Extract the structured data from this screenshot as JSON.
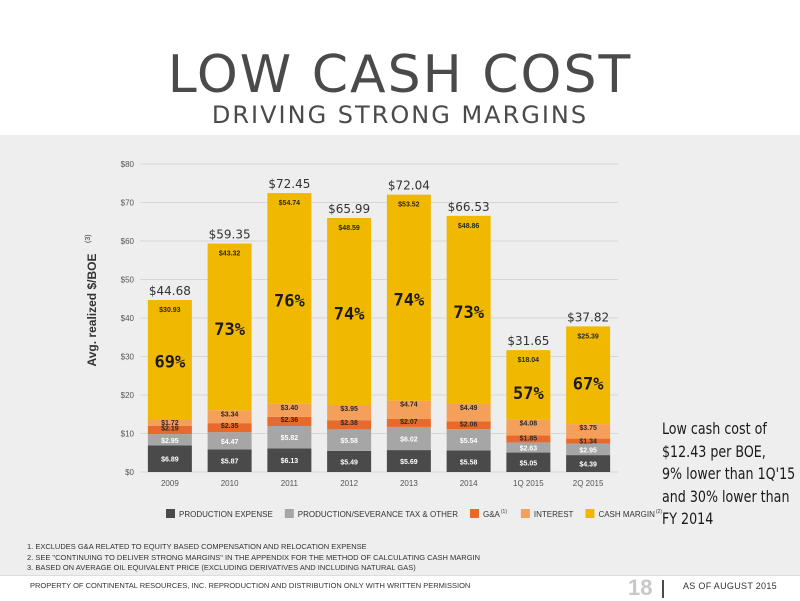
{
  "header": {
    "title": "LOW CASH COST",
    "subtitle": "DRIVING STRONG MARGINS"
  },
  "callout": {
    "lines": [
      "Low cash cost of",
      "$12.43 per BOE,",
      "9% lower than 1Q'15",
      "and 30% lower than",
      "FY 2014"
    ]
  },
  "footnotes": [
    "1. EXCLUDES G&A RELATED TO EQUITY BASED COMPENSATION AND RELOCATION EXPENSE",
    "2. SEE \"CONTINUING TO DELIVER STRONG MARGINS\" IN THE APPENDIX FOR THE METHOD OF CALCULATING CASH MARGIN",
    "3. BASED ON AVERAGE OIL EQUIVALENT PRICE (EXCLUDING DERIVATIVES AND INCLUDING NATURAL GAS)"
  ],
  "footer": {
    "left": "PROPERTY OF CONTINENTAL RESOURCES, INC. REPRODUCTION AND DISTRIBUTION ONLY WITH WRITTEN PERMISSION",
    "page": "18",
    "right": "AS OF AUGUST 2015"
  },
  "colors": {
    "production_expense": "#4a4a4a",
    "production_tax": "#a6a6a6",
    "ga": "#e76a2c",
    "interest": "#f5a05a",
    "cash_margin": "#f1b800"
  },
  "chart_data": {
    "type": "bar",
    "stacked": true,
    "categories": [
      "2009",
      "2010",
      "2011",
      "2012",
      "2013",
      "2014",
      "1Q 2015",
      "2Q 2015"
    ],
    "ylabel": "Avg. realized $/BOE",
    "ylabel_sup": "(3)",
    "ylim": [
      0,
      80
    ],
    "yticks": [
      "$0",
      "$10",
      "$20",
      "$30",
      "$40",
      "$50",
      "$60",
      "$70",
      "$80"
    ],
    "grid": true,
    "legend_position": "bottom",
    "series": [
      {
        "name": "PRODUCTION EXPENSE",
        "sup": "",
        "color_key": "production_expense",
        "values": [
          6.89,
          5.87,
          6.13,
          5.49,
          5.69,
          5.58,
          5.05,
          4.39
        ],
        "labels": [
          "$6.89",
          "$5.87",
          "$6.13",
          "$5.49",
          "$5.69",
          "$5.58",
          "$5.05",
          "$4.39"
        ]
      },
      {
        "name": "PRODUCTION/SEVERANCE TAX & OTHER",
        "sup": "",
        "color_key": "production_tax",
        "values": [
          2.95,
          4.47,
          5.82,
          5.58,
          6.02,
          5.54,
          2.63,
          2.95
        ],
        "labels": [
          "$2.95",
          "$4.47",
          "$5.82",
          "$5.58",
          "$6.02",
          "$5.54",
          "$2.63",
          "$2.95"
        ]
      },
      {
        "name": "G&A",
        "sup": "(1)",
        "color_key": "ga",
        "values": [
          2.19,
          2.35,
          2.36,
          2.38,
          2.07,
          2.06,
          1.85,
          1.34
        ],
        "labels": [
          "$2.19",
          "$2.35",
          "$2.36",
          "$2.38",
          "$2.07",
          "$2.06",
          "$1.85",
          "$1.34"
        ]
      },
      {
        "name": "INTEREST",
        "sup": "",
        "color_key": "interest",
        "values": [
          1.72,
          3.34,
          3.4,
          3.95,
          4.74,
          4.49,
          4.08,
          3.75
        ],
        "labels": [
          "$1.72",
          "$3.34",
          "$3.40",
          "$3.95",
          "$4.74",
          "$4.49",
          "$4.08",
          "$3.75"
        ]
      },
      {
        "name": "CASH MARGIN",
        "sup": "(2)",
        "color_key": "cash_margin",
        "values": [
          30.93,
          43.32,
          54.74,
          48.59,
          53.52,
          48.86,
          18.04,
          25.39
        ],
        "labels": [
          "$30.93",
          "$43.32",
          "$54.74",
          "$48.59",
          "$53.52",
          "$48.86",
          "$18.04",
          "$25.39"
        ]
      }
    ],
    "totals": [
      "$44.68",
      "$59.35",
      "$72.45",
      "$65.99",
      "$72.04",
      "$66.53",
      "$31.65",
      "$37.82"
    ],
    "margin_pct": [
      "69%",
      "73%",
      "76%",
      "74%",
      "74%",
      "73%",
      "57%",
      "67%"
    ]
  }
}
